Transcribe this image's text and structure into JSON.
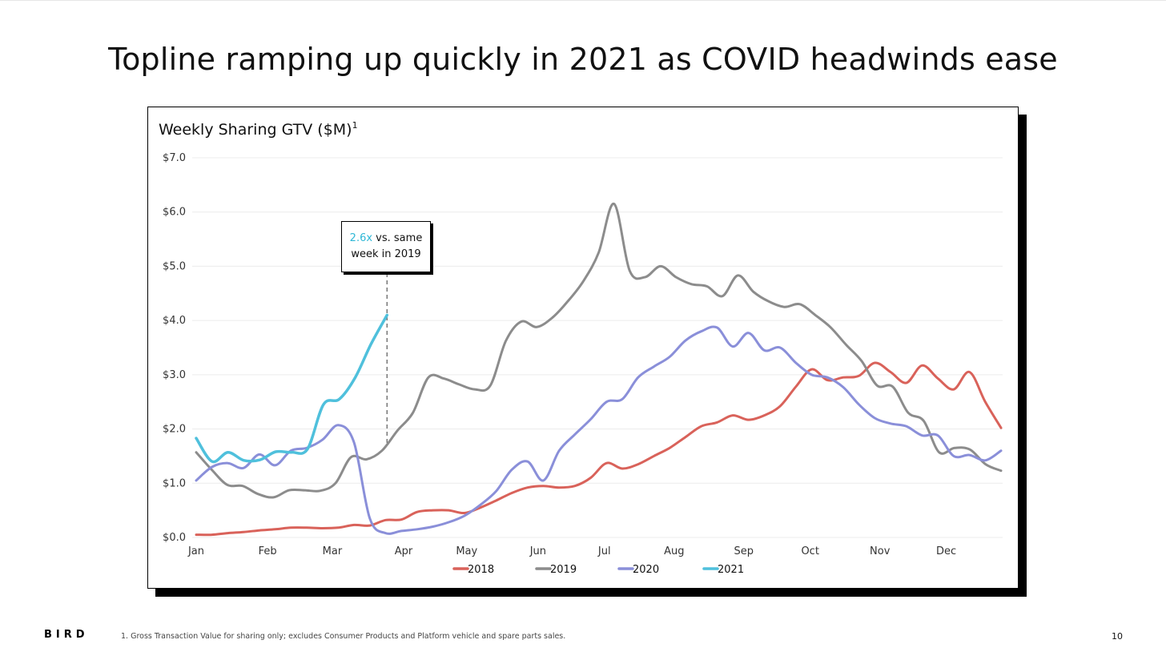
{
  "slide": {
    "title": "Topline ramping up quickly in 2021 as COVID headwinds ease",
    "footnote": "1. Gross Transaction Value for sharing only; excludes Consumer Products and Platform vehicle and spare parts sales.",
    "page_number": "10",
    "logo_text": "BIRD"
  },
  "callout": {
    "accent_text": "2.6x",
    "line1_rest": " vs. same",
    "line2": "week in 2019"
  },
  "chart_data": {
    "type": "line",
    "title": "Weekly Sharing GTV ($M)",
    "title_superscript": "1",
    "ylim": [
      0,
      7
    ],
    "y_ticks": [
      0,
      1,
      2,
      3,
      4,
      5,
      6,
      7
    ],
    "y_tick_labels": [
      "$0.0",
      "$1.0",
      "$2.0",
      "$3.0",
      "$4.0",
      "$5.0",
      "$6.0",
      "$7.0"
    ],
    "x_label_weeks": [
      0,
      4.3,
      8.2,
      12.5,
      16.3,
      20.6,
      24.6,
      28.8,
      33,
      37,
      41.2,
      45.2
    ],
    "x_tick_labels": [
      "Jan",
      "Feb",
      "Mar",
      "Apr",
      "May",
      "Jun",
      "Jul",
      "Aug",
      "Sep",
      "Oct",
      "Nov",
      "Dec"
    ],
    "xlim": [
      0,
      48.5
    ],
    "grid": true,
    "legend_position": "bottom",
    "callout_week": 11.5,
    "series": [
      {
        "name": "2018",
        "color": "#d9625a",
        "values": [
          0.05,
          0.05,
          0.08,
          0.1,
          0.13,
          0.15,
          0.18,
          0.18,
          0.17,
          0.18,
          0.23,
          0.22,
          0.32,
          0.33,
          0.47,
          0.5,
          0.5,
          0.45,
          0.55,
          0.68,
          0.82,
          0.92,
          0.95,
          0.92,
          0.95,
          1.1,
          1.37,
          1.27,
          1.35,
          1.5,
          1.65,
          1.85,
          2.05,
          2.12,
          2.25,
          2.17,
          2.25,
          2.42,
          2.78,
          3.1,
          2.9,
          2.95,
          2.98,
          3.22,
          3.05,
          2.85,
          3.17,
          2.93,
          2.73,
          3.05,
          2.5,
          2.02
        ]
      },
      {
        "name": "2019",
        "color": "#8c8c8c",
        "values": [
          1.57,
          1.25,
          0.97,
          0.95,
          0.8,
          0.74,
          0.87,
          0.87,
          0.86,
          1.0,
          1.48,
          1.44,
          1.6,
          1.97,
          2.3,
          2.95,
          2.93,
          2.82,
          2.73,
          2.8,
          3.62,
          3.98,
          3.88,
          4.05,
          4.35,
          4.72,
          5.25,
          6.15,
          4.92,
          4.8,
          5.0,
          4.8,
          4.67,
          4.63,
          4.45,
          4.83,
          4.53,
          4.35,
          4.25,
          4.3,
          4.1,
          3.87,
          3.55,
          3.25,
          2.8,
          2.78,
          2.3,
          2.15,
          1.57,
          1.65,
          1.62,
          1.35,
          1.23
        ]
      },
      {
        "name": "2020",
        "color": "#8a8fd9",
        "values": [
          1.05,
          1.3,
          1.37,
          1.28,
          1.53,
          1.33,
          1.6,
          1.65,
          1.8,
          2.07,
          1.75,
          0.35,
          0.08,
          0.12,
          0.15,
          0.2,
          0.28,
          0.4,
          0.6,
          0.85,
          1.25,
          1.4,
          1.05,
          1.6,
          1.9,
          2.18,
          2.5,
          2.55,
          2.95,
          3.15,
          3.33,
          3.63,
          3.8,
          3.87,
          3.52,
          3.77,
          3.45,
          3.5,
          3.22,
          3.0,
          2.95,
          2.77,
          2.45,
          2.2,
          2.1,
          2.05,
          1.88,
          1.88,
          1.5,
          1.52,
          1.42,
          1.6
        ]
      },
      {
        "name": "2021",
        "color": "#4fc0dc",
        "values": [
          1.83,
          1.4,
          1.57,
          1.42,
          1.43,
          1.58,
          1.57,
          1.63,
          2.45,
          2.55,
          2.95,
          3.57,
          4.1
        ]
      }
    ]
  }
}
